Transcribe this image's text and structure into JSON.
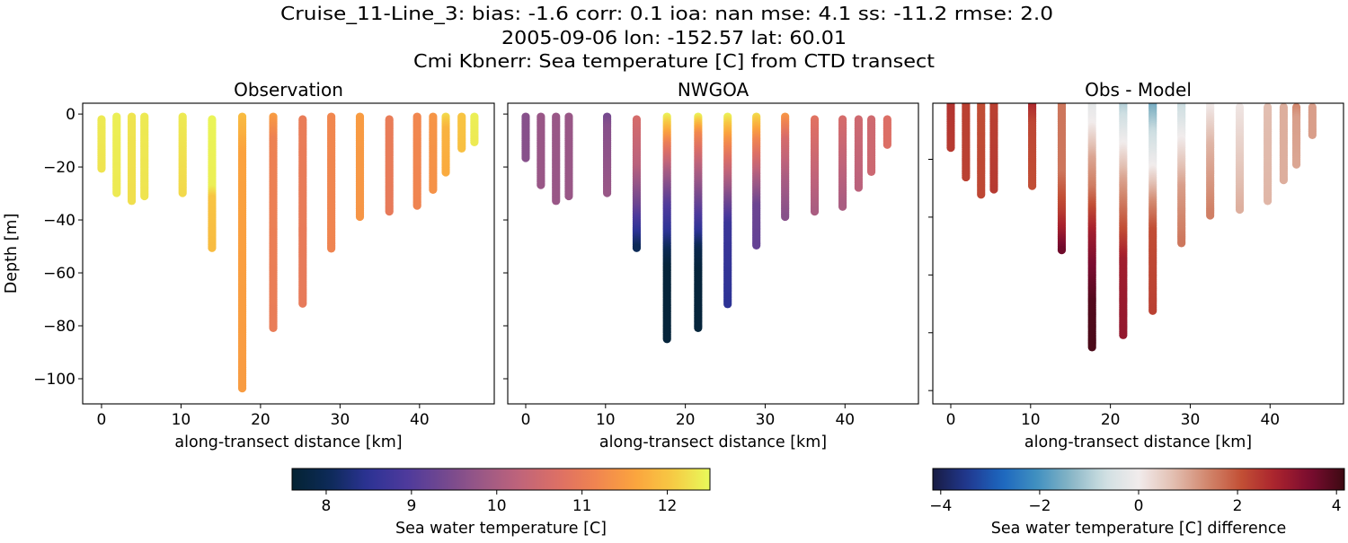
{
  "suptitle": {
    "line1": "Cruise_11-Line_3: bias: -1.6  corr: 0.1  ioa: nan  mse: 4.1  ss: -11.2  rmse: 2.0",
    "line2": "2005-09-06 lon: -152.57 lat: 60.01",
    "line3": "Cmi Kbnerr: Sea temperature [C] from CTD transect"
  },
  "colormaps": {
    "thermal": [
      "#042333",
      "#0d2a58",
      "#2c3395",
      "#4d3a9c",
      "#73488f",
      "#9b5886",
      "#c0647a",
      "#dd6f65",
      "#f08550",
      "#fba33e",
      "#f7c943",
      "#e8fa5b"
    ],
    "balance": [
      "#181c43",
      "#21388f",
      "#1c66bf",
      "#3f8fc0",
      "#86b5c5",
      "#cfdfe2",
      "#f1ecec",
      "#e2bfb2",
      "#d2876d",
      "#c24f35",
      "#a9222d",
      "#7a0c30",
      "#3c0912"
    ]
  },
  "chart_data": [
    {
      "type": "scatter",
      "title": "Observation",
      "xlabel": "along-transect distance [km]",
      "ylabel": "Depth [m]",
      "xlim": [
        -2.37,
        49.4
      ],
      "ylim": [
        -109.5,
        4.1
      ],
      "xticks": [
        0,
        10,
        20,
        30,
        40
      ],
      "xtick_labels": [
        "0",
        "10",
        "20",
        "30",
        "40"
      ],
      "yticks": [
        0,
        -20,
        -40,
        -60,
        -80,
        -100
      ],
      "ytick_labels": [
        "0",
        "−20",
        "−40",
        "−60",
        "−80",
        "−100"
      ],
      "colormap": "thermal",
      "vmin": 7.6,
      "vmax": 12.5,
      "profiles": [
        {
          "x": 0,
          "depth": [
            -2,
            -21
          ],
          "value": [
            12.35,
            12.3
          ]
        },
        {
          "x": 1.9,
          "depth": [
            -1,
            -30
          ],
          "value": [
            12.4,
            12.35
          ]
        },
        {
          "x": 3.8,
          "depth": [
            -1,
            -33
          ],
          "value": [
            12.3,
            12.25
          ]
        },
        {
          "x": 5.4,
          "depth": [
            -1,
            -31
          ],
          "value": [
            12.35,
            12.3
          ]
        },
        {
          "x": 10.2,
          "depth": [
            -1,
            -30
          ],
          "value": [
            12.35,
            12.2
          ]
        },
        {
          "x": 13.9,
          "depth": [
            -2,
            -28,
            -32,
            -51
          ],
          "value": [
            12.45,
            12.4,
            12.0,
            11.9
          ]
        },
        {
          "x": 17.7,
          "depth": [
            -1,
            -15,
            -104
          ],
          "value": [
            11.9,
            11.6,
            11.5
          ]
        },
        {
          "x": 21.6,
          "depth": [
            -1,
            -10,
            -81
          ],
          "value": [
            11.5,
            11.1,
            11.0
          ]
        },
        {
          "x": 25.3,
          "depth": [
            -2,
            -72
          ],
          "value": [
            11.0,
            10.95
          ]
        },
        {
          "x": 28.9,
          "depth": [
            -1,
            -51
          ],
          "value": [
            11.2,
            11.15
          ]
        },
        {
          "x": 32.5,
          "depth": [
            -1,
            -39
          ],
          "value": [
            11.5,
            11.4
          ]
        },
        {
          "x": 36.2,
          "depth": [
            -2,
            -37
          ],
          "value": [
            11.0,
            10.95
          ]
        },
        {
          "x": 39.7,
          "depth": [
            -1,
            -35
          ],
          "value": [
            11.2,
            11.15
          ]
        },
        {
          "x": 41.7,
          "depth": [
            -1,
            -29
          ],
          "value": [
            11.4,
            11.35
          ]
        },
        {
          "x": 43.3,
          "depth": [
            -1,
            -6,
            -22
          ],
          "value": [
            12.2,
            11.8,
            11.7
          ]
        },
        {
          "x": 45.3,
          "depth": [
            -1,
            -13
          ],
          "value": [
            12.0,
            11.95
          ]
        },
        {
          "x": 46.9,
          "depth": [
            -1,
            -11
          ],
          "value": [
            12.4,
            12.35
          ]
        }
      ]
    },
    {
      "type": "scatter",
      "title": "NWGOA",
      "xlabel": "along-transect distance [km]",
      "xlim": [
        -2.25,
        49.2
      ],
      "ylim": [
        -109.5,
        4.1
      ],
      "xticks": [
        0,
        10,
        20,
        30,
        40
      ],
      "xtick_labels": [
        "0",
        "10",
        "20",
        "30",
        "40"
      ],
      "yticks": [
        0,
        -20,
        -40,
        -60,
        -80,
        -100
      ],
      "colormap": "thermal",
      "vmin": 7.6,
      "vmax": 12.5,
      "profiles": [
        {
          "x": 0,
          "depth": [
            -1,
            -17
          ],
          "value": [
            9.6,
            9.6
          ]
        },
        {
          "x": 1.9,
          "depth": [
            -1,
            -27
          ],
          "value": [
            9.8,
            9.8
          ]
        },
        {
          "x": 3.8,
          "depth": [
            -1,
            -33
          ],
          "value": [
            9.8,
            9.8
          ]
        },
        {
          "x": 5.4,
          "depth": [
            -1,
            -31
          ],
          "value": [
            9.8,
            9.8
          ]
        },
        {
          "x": 10.2,
          "depth": [
            -1,
            -5,
            -30
          ],
          "value": [
            9.4,
            9.6,
            9.8
          ]
        },
        {
          "x": 13.9,
          "depth": [
            -2,
            -20,
            -35,
            -45,
            -51
          ],
          "value": [
            10.6,
            10.2,
            9.3,
            8.5,
            8.0
          ]
        },
        {
          "x": 17.7,
          "depth": [
            -1,
            -6,
            -12,
            -22,
            -35,
            -45,
            -52,
            -58,
            -85
          ],
          "value": [
            12.4,
            11.8,
            11.0,
            10.0,
            9.0,
            8.5,
            8.0,
            7.7,
            7.7
          ]
        },
        {
          "x": 21.6,
          "depth": [
            -1,
            -8,
            -20,
            -32,
            -45,
            -52,
            -60,
            -81
          ],
          "value": [
            12.4,
            11.2,
            10.2,
            9.4,
            8.5,
            7.9,
            7.7,
            7.7
          ]
        },
        {
          "x": 25.3,
          "depth": [
            -1,
            -10,
            -20,
            -32,
            -42,
            -72
          ],
          "value": [
            12.4,
            11.4,
            10.5,
            9.5,
            8.7,
            8.5
          ]
        },
        {
          "x": 28.9,
          "depth": [
            -1,
            -10,
            -25,
            -35,
            -50
          ],
          "value": [
            12.2,
            11.2,
            10.0,
            9.3,
            9.2
          ]
        },
        {
          "x": 32.5,
          "depth": [
            -1,
            -10,
            -25,
            -39
          ],
          "value": [
            11.4,
            10.6,
            10.0,
            9.6
          ]
        },
        {
          "x": 36.2,
          "depth": [
            -2,
            -37
          ],
          "value": [
            10.8,
            10.0
          ]
        },
        {
          "x": 39.7,
          "depth": [
            -2,
            -35
          ],
          "value": [
            10.6,
            10.0
          ]
        },
        {
          "x": 41.7,
          "depth": [
            -2,
            -28
          ],
          "value": [
            10.5,
            10.2
          ]
        },
        {
          "x": 43.3,
          "depth": [
            -2,
            -22
          ],
          "value": [
            10.5,
            10.45
          ]
        },
        {
          "x": 45.3,
          "depth": [
            -2,
            -12
          ],
          "value": [
            10.7,
            10.7
          ]
        }
      ]
    },
    {
      "type": "scatter",
      "title": "Obs - Model",
      "xlabel": "along-transect distance [km]",
      "xlim": [
        -2.25,
        49.2
      ],
      "ylim": [
        -104.6,
        -0.6
      ],
      "xticks": [
        0,
        10,
        20,
        30,
        40
      ],
      "xtick_labels": [
        "0",
        "10",
        "20",
        "30",
        "40"
      ],
      "yticks": [
        -20,
        -40,
        -60,
        -80,
        -100
      ],
      "colormap": "balance",
      "vmin": -4.16,
      "vmax": 4.16,
      "profiles": [
        {
          "x": 0,
          "depth": [
            -1,
            -16.5
          ],
          "value": [
            2.5,
            2.4
          ]
        },
        {
          "x": 1.9,
          "depth": [
            -1,
            -26.5
          ],
          "value": [
            2.3,
            2.3
          ]
        },
        {
          "x": 3.8,
          "depth": [
            -1,
            -32.5
          ],
          "value": [
            2.1,
            2.2
          ]
        },
        {
          "x": 5.4,
          "depth": [
            -1,
            -30.5
          ],
          "value": [
            2.3,
            2.4
          ]
        },
        {
          "x": 10.2,
          "depth": [
            -1,
            -8,
            -29.5
          ],
          "value": [
            2.7,
            2.2,
            2.1
          ]
        },
        {
          "x": 13.9,
          "depth": [
            -1,
            -25,
            -38,
            -45,
            -51.5
          ],
          "value": [
            1.6,
            1.6,
            2.3,
            2.9,
            3.6
          ]
        },
        {
          "x": 17.7,
          "depth": [
            -1,
            -8,
            -20,
            -30,
            -38,
            -46,
            -56,
            -70,
            -85.5
          ],
          "value": [
            -0.3,
            0.0,
            1.0,
            1.5,
            2.2,
            2.9,
            3.4,
            3.9,
            4.0
          ]
        },
        {
          "x": 21.6,
          "depth": [
            -1,
            -15,
            -27,
            -45,
            -55,
            -81.3
          ],
          "value": [
            -1.0,
            0.0,
            1.0,
            2.1,
            2.9,
            3.1
          ]
        },
        {
          "x": 25.3,
          "depth": [
            -1,
            -10,
            -23,
            -35,
            -45,
            -72.5
          ],
          "value": [
            -1.6,
            -0.8,
            0.0,
            1.3,
            2.1,
            2.3
          ]
        },
        {
          "x": 28.9,
          "depth": [
            -1,
            -13,
            -30,
            -49.5
          ],
          "value": [
            -0.8,
            0.0,
            1.1,
            1.6
          ]
        },
        {
          "x": 32.5,
          "depth": [
            -1,
            -15,
            -39.7
          ],
          "value": [
            0.0,
            0.8,
            1.5
          ]
        },
        {
          "x": 36.2,
          "depth": [
            -2,
            -37.6
          ],
          "value": [
            0.1,
            0.9
          ]
        },
        {
          "x": 39.7,
          "depth": [
            -2,
            -34.5
          ],
          "value": [
            0.7,
            0.8
          ]
        },
        {
          "x": 41.7,
          "depth": [
            -2,
            -27.7
          ],
          "value": [
            0.9,
            0.9
          ]
        },
        {
          "x": 43.3,
          "depth": [
            -2,
            -6,
            -21.8
          ],
          "value": [
            1.4,
            1.1,
            1.0
          ]
        },
        {
          "x": 45.3,
          "depth": [
            -2,
            -11.7
          ],
          "value": [
            1.1,
            1.1
          ]
        }
      ]
    }
  ],
  "colorbars": [
    {
      "label": "Sea water temperature [C]",
      "colormap": "thermal",
      "vmin": 7.6,
      "vmax": 12.5,
      "ticks": [
        8,
        9,
        10,
        11,
        12
      ],
      "tick_labels": [
        "8",
        "9",
        "10",
        "11",
        "12"
      ]
    },
    {
      "label": "Sea water temperature [C] difference",
      "colormap": "balance",
      "vmin": -4.16,
      "vmax": 4.16,
      "ticks": [
        -4,
        -2,
        0,
        2,
        4
      ],
      "tick_labels": [
        "−4",
        "−2",
        "0",
        "2",
        "4"
      ]
    }
  ]
}
